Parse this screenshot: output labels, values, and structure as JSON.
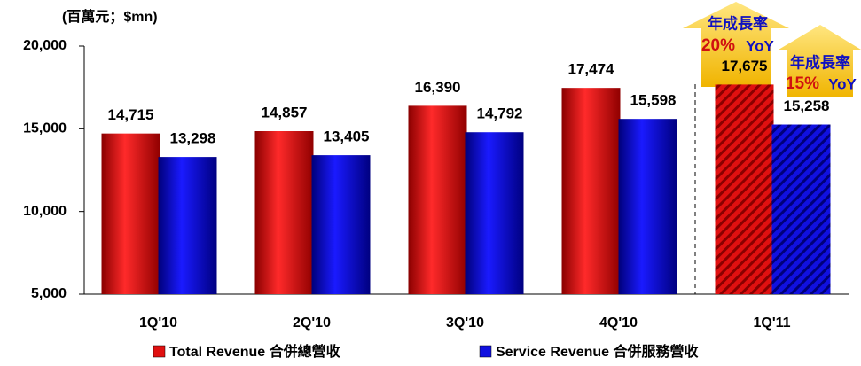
{
  "chart_data": {
    "type": "bar",
    "unit_label": "(百萬元；$mn)",
    "categories": [
      "1Q'10",
      "2Q'10",
      "3Q'10",
      "4Q'10",
      "1Q'11"
    ],
    "hatched": [
      false,
      false,
      false,
      false,
      true
    ],
    "series": [
      {
        "name": "Total Revenue 合併總營收",
        "color": "#e01010",
        "values": [
          14715,
          14857,
          16390,
          17474,
          17675
        ],
        "value_labels": [
          "14,715",
          "14,857",
          "16,390",
          "17,474",
          "17,675"
        ]
      },
      {
        "name": "Service Revenue 合併服務營收",
        "color": "#1010e0",
        "values": [
          13298,
          13405,
          14792,
          15598,
          15258
        ],
        "value_labels": [
          "13,298",
          "13,405",
          "14,792",
          "15,598",
          "15,258"
        ]
      }
    ],
    "ylim": [
      5000,
      20000
    ],
    "yticks": [
      {
        "value": 5000,
        "label": "5,000"
      },
      {
        "value": 10000,
        "label": "10,000"
      },
      {
        "value": 15000,
        "label": "15,000"
      },
      {
        "value": 20000,
        "label": "20,000"
      }
    ],
    "annotations": [
      {
        "title": "年成長率",
        "rate": "20%",
        "suffix": "YoY"
      },
      {
        "title": "年成長率",
        "rate": "15%",
        "suffix": "YoY"
      }
    ]
  }
}
